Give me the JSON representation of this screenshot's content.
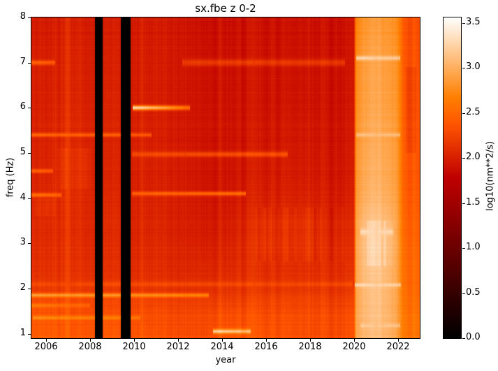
{
  "chart_data": {
    "type": "heatmap",
    "title": "sx.fbe z 0-2",
    "xlabel": "year",
    "ylabel": "freq (Hz)",
    "x_range": [
      2005.33,
      2023.0
    ],
    "y_range": [
      0.9,
      8.0
    ],
    "x_ticks": [
      2006,
      2008,
      2010,
      2012,
      2014,
      2016,
      2018,
      2020,
      2022
    ],
    "y_ticks": [
      1,
      2,
      3,
      4,
      5,
      6,
      7,
      8
    ],
    "grid_on": false,
    "colorbar": {
      "label": "log10(nm**2/s)",
      "ticks": [
        "0.0",
        "0.5",
        "1.0",
        "1.5",
        "2.0",
        "2.5",
        "3.0",
        "3.5"
      ],
      "tick_values": [
        0.0,
        0.5,
        1.0,
        1.5,
        2.0,
        2.5,
        3.0,
        3.5
      ],
      "vmin": 0.0,
      "vmax": 3.56,
      "colormap": "gist_heat"
    },
    "grid": {
      "years": [
        2005.33,
        2006,
        2007,
        2008,
        2009,
        2010,
        2011,
        2012,
        2013,
        2014,
        2015,
        2016,
        2017,
        2018,
        2019,
        2020.0,
        2020.1,
        2020.6,
        2021.2,
        2021.7,
        2022.0,
        2022.15,
        2022.3,
        2023
      ],
      "freqs": [
        8,
        7,
        6,
        5,
        4,
        3.5,
        3,
        2.5,
        2,
        1.8,
        1.5,
        1.2,
        0.9
      ],
      "values": [
        [
          1.97,
          1.98,
          2.03,
          1.98,
          1.96,
          1.96,
          1.95,
          1.94,
          1.9,
          1.88,
          1.88,
          1.9,
          1.9,
          1.9,
          1.88,
          1.88,
          2.7,
          2.8,
          2.82,
          2.78,
          2.72,
          2.55,
          2.35,
          2.33
        ],
        [
          2.0,
          2.0,
          2.06,
          2.0,
          1.98,
          1.98,
          1.96,
          1.95,
          1.91,
          1.89,
          1.89,
          1.91,
          1.91,
          1.91,
          1.89,
          1.89,
          2.76,
          2.86,
          2.88,
          2.82,
          2.76,
          2.58,
          2.36,
          2.35
        ],
        [
          2.0,
          2.01,
          2.08,
          2.01,
          2.0,
          1.99,
          1.97,
          1.95,
          1.92,
          1.9,
          1.9,
          1.92,
          1.93,
          1.92,
          1.9,
          1.9,
          2.78,
          2.88,
          2.9,
          2.84,
          2.78,
          2.58,
          2.38,
          2.36
        ],
        [
          2.01,
          2.03,
          2.1,
          2.02,
          2.0,
          2.0,
          1.98,
          1.97,
          1.93,
          1.91,
          1.92,
          1.95,
          1.96,
          1.95,
          1.92,
          1.92,
          2.82,
          2.92,
          2.94,
          2.88,
          2.8,
          2.6,
          2.4,
          2.38
        ],
        [
          2.03,
          2.06,
          2.12,
          2.05,
          2.02,
          2.01,
          2.0,
          1.99,
          1.95,
          1.93,
          1.96,
          2.0,
          2.01,
          2.0,
          1.96,
          1.96,
          2.86,
          2.98,
          3.0,
          2.92,
          2.84,
          2.62,
          2.42,
          2.4
        ],
        [
          2.06,
          2.08,
          2.12,
          2.06,
          2.05,
          2.03,
          2.02,
          2.0,
          1.97,
          1.96,
          2.02,
          2.1,
          2.1,
          2.09,
          2.02,
          2.02,
          2.92,
          3.08,
          3.1,
          3.0,
          2.88,
          2.66,
          2.46,
          2.44
        ],
        [
          2.08,
          2.1,
          2.14,
          2.08,
          2.06,
          2.05,
          2.05,
          2.03,
          2.01,
          2.01,
          2.06,
          2.14,
          2.12,
          2.12,
          2.06,
          2.06,
          2.95,
          3.12,
          3.14,
          3.02,
          2.9,
          2.68,
          2.5,
          2.48
        ],
        [
          2.1,
          2.12,
          2.15,
          2.1,
          2.08,
          2.08,
          2.07,
          2.05,
          2.05,
          2.05,
          2.08,
          2.1,
          2.1,
          2.1,
          2.08,
          2.08,
          2.95,
          3.1,
          3.12,
          3.0,
          2.88,
          2.68,
          2.52,
          2.5
        ],
        [
          2.15,
          2.17,
          2.19,
          2.15,
          2.12,
          2.12,
          2.11,
          2.1,
          2.1,
          2.12,
          2.12,
          2.14,
          2.14,
          2.14,
          2.12,
          2.12,
          2.94,
          3.06,
          3.08,
          2.98,
          2.88,
          2.68,
          2.54,
          2.5
        ],
        [
          2.28,
          2.3,
          2.29,
          2.27,
          2.24,
          2.24,
          2.21,
          2.2,
          2.2,
          2.2,
          2.2,
          2.24,
          2.24,
          2.24,
          2.2,
          2.2,
          2.94,
          3.06,
          3.08,
          2.98,
          2.88,
          2.7,
          2.56,
          2.53
        ],
        [
          2.34,
          2.37,
          2.34,
          2.31,
          2.3,
          2.3,
          2.29,
          2.27,
          2.27,
          2.3,
          2.3,
          2.3,
          2.3,
          2.29,
          2.27,
          2.27,
          2.95,
          3.06,
          3.08,
          2.98,
          2.88,
          2.72,
          2.58,
          2.56
        ],
        [
          2.38,
          2.41,
          2.39,
          2.37,
          2.35,
          2.34,
          2.31,
          2.3,
          2.3,
          2.34,
          2.34,
          2.34,
          2.34,
          2.31,
          2.3,
          2.3,
          2.95,
          3.05,
          3.06,
          2.98,
          2.88,
          2.72,
          2.6,
          2.58
        ],
        [
          2.4,
          2.44,
          2.41,
          2.39,
          2.37,
          2.37,
          2.34,
          2.31,
          2.3,
          2.37,
          2.37,
          2.37,
          2.34,
          2.31,
          2.3,
          2.3,
          2.94,
          3.03,
          3.04,
          2.96,
          2.86,
          2.72,
          2.6,
          2.58
        ]
      ]
    },
    "data_gaps": [
      [
        2008.21,
        2008.56
      ],
      [
        2009.39,
        2009.85
      ]
    ],
    "bright_band": {
      "start": 2020.05,
      "end": 2022.15,
      "approx_value": 3.0
    },
    "spectral_lines": [
      {
        "freq": 6.0,
        "from": 2009.95,
        "to": 2012.55,
        "peak": 3.35,
        "end": 2.55,
        "sigma": 0.035
      },
      {
        "freq": 7.0,
        "from": 2012.2,
        "to": 2019.6,
        "peak": 2.22,
        "end": 2.18,
        "sigma": 0.05
      },
      {
        "freq": 1.85,
        "from": 2005.33,
        "to": 2013.4,
        "peak": 2.92,
        "end": 2.7,
        "sigma": 0.03
      },
      {
        "freq": 1.62,
        "from": 2005.33,
        "to": 2008.0,
        "peak": 2.68,
        "end": 2.5,
        "sigma": 0.03
      },
      {
        "freq": 1.35,
        "from": 2005.4,
        "to": 2010.3,
        "peak": 2.78,
        "end": 2.6,
        "sigma": 0.03
      },
      {
        "freq": 1.05,
        "from": 2013.6,
        "to": 2015.3,
        "peak": 3.25,
        "end": 3.05,
        "sigma": 0.035
      },
      {
        "freq": 7.0,
        "from": 2005.33,
        "to": 2006.4,
        "peak": 2.5,
        "end": 2.42,
        "sigma": 0.035
      },
      {
        "freq": 5.4,
        "from": 2005.33,
        "to": 2010.8,
        "peak": 2.5,
        "end": 2.35,
        "sigma": 0.03
      },
      {
        "freq": 4.6,
        "from": 2005.33,
        "to": 2006.3,
        "peak": 2.5,
        "end": 2.42,
        "sigma": 0.03
      },
      {
        "freq": 4.07,
        "from": 2005.33,
        "to": 2006.7,
        "peak": 2.6,
        "end": 2.5,
        "sigma": 0.03
      },
      {
        "freq": 2.1,
        "from": 2005.33,
        "to": 2019.95,
        "peak": 2.32,
        "end": 2.3,
        "sigma": 0.04
      },
      {
        "freq": 4.97,
        "from": 2009.9,
        "to": 2017.0,
        "peak": 2.28,
        "end": 2.35,
        "sigma": 0.04
      },
      {
        "freq": 4.1,
        "from": 2009.9,
        "to": 2015.1,
        "peak": 2.45,
        "end": 2.55,
        "sigma": 0.03
      },
      {
        "freq": 7.1,
        "from": 2020.1,
        "to": 2022.1,
        "peak": 3.25,
        "end": 3.15,
        "sigma": 0.035
      },
      {
        "freq": 5.4,
        "from": 2020.1,
        "to": 2022.1,
        "peak": 3.1,
        "end": 3.05,
        "sigma": 0.03
      },
      {
        "freq": 3.25,
        "from": 2020.3,
        "to": 2021.8,
        "peak": 3.3,
        "end": 3.25,
        "sigma": 0.05
      },
      {
        "freq": 2.08,
        "from": 2020.05,
        "to": 2022.15,
        "peak": 3.3,
        "end": 3.2,
        "sigma": 0.03
      },
      {
        "freq": 1.18,
        "from": 2020.3,
        "to": 2022.1,
        "peak": 3.18,
        "end": 3.12,
        "sigma": 0.03
      }
    ],
    "vertical_stripes": [
      {
        "year": 2007.0,
        "width": 0.12,
        "boost": 0.09
      },
      {
        "year": 2006.45,
        "width": 0.07,
        "boost": 0.05
      },
      {
        "year": 2010.35,
        "width": 0.08,
        "boost": 0.06
      },
      {
        "year": 2012.35,
        "width": 0.08,
        "boost": 0.05
      },
      {
        "year": 2013.95,
        "width": 0.08,
        "boost": 0.05
      },
      {
        "year": 2015.45,
        "width": 0.1,
        "boost": 0.05
      },
      {
        "year": 2021.0,
        "width": 0.25,
        "boost": 0.06
      }
    ],
    "patches": [
      {
        "from": 2015.4,
        "to": 2019.6,
        "fmin": 2.6,
        "fmax": 3.8,
        "amp": 0.07,
        "boost": 0.02
      },
      {
        "from": 2020.55,
        "to": 2021.75,
        "fmin": 2.5,
        "fmax": 3.5,
        "amp": 0.06,
        "boost": 0.06
      },
      {
        "from": 2006.5,
        "to": 2008.05,
        "fmin": 4.2,
        "fmax": 5.1,
        "amp": 0.03,
        "boost": 0.06
      },
      {
        "from": 2005.5,
        "to": 2006.4,
        "fmin": 3.6,
        "fmax": 4.0,
        "amp": 0.03,
        "boost": 0.07
      },
      {
        "from": 2022.35,
        "to": 2022.85,
        "fmin": 5.0,
        "fmax": 6.9,
        "amp": 0.02,
        "boost": -0.1
      }
    ],
    "noise": {
      "seed": 42,
      "column_fine": 0.035,
      "column_broad": 0.04,
      "row": 0.03,
      "speckle": 0.015
    }
  }
}
